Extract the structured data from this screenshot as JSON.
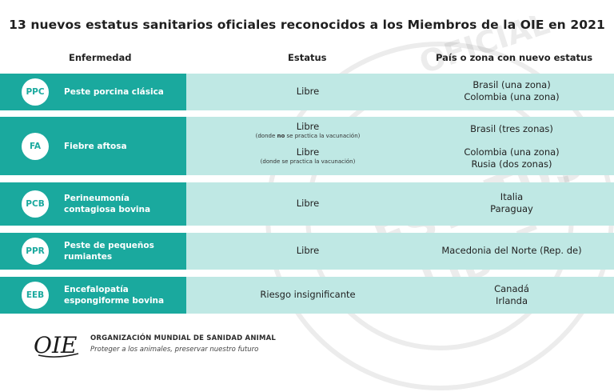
{
  "title": "13 nuevos estatus sanitarios oficiales reconocidos a los Miembros de la OIE en 2021",
  "headers": {
    "disease": "Enfermedad",
    "status": "Estatus",
    "country": "País o zona con nuevo estatus"
  },
  "rows": [
    {
      "code": "PPC",
      "disease_line1": "Peste porcina clásica",
      "disease_line2": "",
      "status": "Libre",
      "countries": [
        "Brasil (una zona)",
        "Colombia (una zona)"
      ]
    },
    {
      "code": "FA",
      "disease_line1": "Fiebre aftosa",
      "disease_line2": "",
      "status_a": "Libre",
      "status_a_note_pre": "(donde ",
      "status_a_note_bold": "no",
      "status_a_note_post": " se practica la vacunación)",
      "status_b": "Libre",
      "status_b_note": "(donde se practica la vacunación)",
      "countries_a": [
        "Brasil (tres zonas)"
      ],
      "countries_b": [
        "Colombia (una zona)",
        "Rusia (dos zonas)"
      ]
    },
    {
      "code": "PCB",
      "disease_line1": "Perineumonía",
      "disease_line2": "contagiosa bovina",
      "status": "Libre",
      "countries": [
        "Italia",
        "Paraguay"
      ]
    },
    {
      "code": "PPR",
      "disease_line1": "Peste de pequeños",
      "disease_line2": "rumiantes",
      "status": "Libre",
      "countries": [
        "Macedonia del Norte (Rep. de)"
      ]
    },
    {
      "code": "EEB",
      "disease_line1": "Encefalopatía",
      "disease_line2": "espongiforme bovina",
      "status": "Riesgo insignificante",
      "countries": [
        "Canadá",
        "Irlanda"
      ]
    }
  ],
  "footer": {
    "logo_text": "OIE",
    "org": "ORGANIZACIÓN MUNDIAL DE SANIDAD ANIMAL",
    "tagline": "Proteger a los animales, preservar nuestro futuro"
  },
  "watermark": {
    "outer_text": "OFICIAL",
    "line1": "ESTATUS",
    "line2": "LIBRE"
  },
  "colors": {
    "teal": "#1aa99e",
    "light_teal": "#bfe8e4",
    "text": "#1f1f1f"
  }
}
